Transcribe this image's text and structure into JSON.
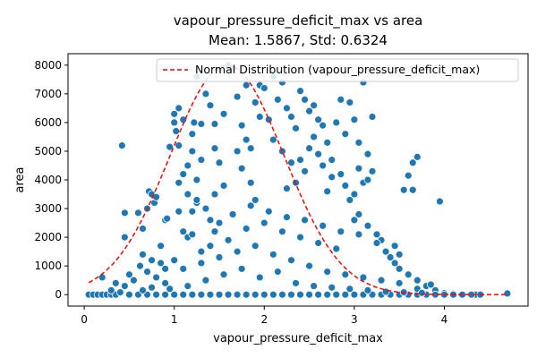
{
  "chart_data": {
    "type": "scatter",
    "title": "vapour_pressure_deficit_max vs area",
    "subtitle": "Mean: 1.5867, Std: 0.6324",
    "xlabel": "vapour_pressure_deficit_max",
    "ylabel": "area",
    "xlim": [
      -0.18,
      4.93
    ],
    "ylim": [
      -400,
      8400
    ],
    "xticks": [
      0,
      1,
      2,
      3,
      4
    ],
    "yticks": [
      0,
      1000,
      2000,
      3000,
      4000,
      5000,
      6000,
      7000,
      8000
    ],
    "grid": false,
    "legend_position": "top-right",
    "point_color": "#1f77b4",
    "curve_color": "#ff0000",
    "normal_curve": {
      "name": "Normal Distribution (vapour_pressure_deficit_max)",
      "mean": 1.5867,
      "std": 0.6324,
      "x_range": [
        0.05,
        4.7
      ],
      "peak_value": 8000
    },
    "series": [
      {
        "name": "",
        "points": [
          [
            0.05,
            0
          ],
          [
            0.1,
            0
          ],
          [
            0.15,
            0
          ],
          [
            0.2,
            0
          ],
          [
            0.25,
            0
          ],
          [
            0.3,
            0
          ],
          [
            0.35,
            0
          ],
          [
            0.2,
            600
          ],
          [
            0.3,
            150
          ],
          [
            0.35,
            400
          ],
          [
            0.4,
            80
          ],
          [
            0.45,
            300
          ],
          [
            0.42,
            5200
          ],
          [
            0.45,
            2850
          ],
          [
            0.45,
            2000
          ],
          [
            0.5,
            700
          ],
          [
            0.55,
            500
          ],
          [
            0.6,
            2850
          ],
          [
            0.62,
            1000
          ],
          [
            0.65,
            2300
          ],
          [
            0.65,
            1400
          ],
          [
            0.7,
            3000
          ],
          [
            0.72,
            3600
          ],
          [
            0.75,
            3500
          ],
          [
            0.78,
            3200
          ],
          [
            0.8,
            3400
          ],
          [
            0.7,
            800
          ],
          [
            0.75,
            1200
          ],
          [
            0.8,
            600
          ],
          [
            0.85,
            1100
          ],
          [
            0.9,
            2600
          ],
          [
            0.92,
            2650
          ],
          [
            0.95,
            5150
          ],
          [
            0.85,
            1700
          ],
          [
            0.9,
            900
          ],
          [
            1.0,
            6300
          ],
          [
            1.02,
            5700
          ],
          [
            1.05,
            5200
          ],
          [
            1.0,
            6000
          ],
          [
            1.05,
            6500
          ],
          [
            1.1,
            6100
          ],
          [
            1.15,
            4500
          ],
          [
            1.1,
            4200
          ],
          [
            1.05,
            3900
          ],
          [
            1.15,
            3500
          ],
          [
            1.2,
            5600
          ],
          [
            1.2,
            5000
          ],
          [
            1.22,
            6000
          ],
          [
            1.25,
            4000
          ],
          [
            1.1,
            2200
          ],
          [
            1.15,
            2000
          ],
          [
            1.2,
            2900
          ],
          [
            1.25,
            3200
          ],
          [
            1.3,
            1500
          ],
          [
            1.25,
            7600
          ],
          [
            1.3,
            5950
          ],
          [
            1.3,
            4700
          ],
          [
            1.35,
            7000
          ],
          [
            1.4,
            6600
          ],
          [
            1.45,
            5950
          ],
          [
            1.5,
            7850
          ],
          [
            1.55,
            6300
          ],
          [
            1.45,
            5100
          ],
          [
            1.5,
            4600
          ],
          [
            1.55,
            3800
          ],
          [
            1.5,
            2500
          ],
          [
            1.4,
            1700
          ],
          [
            1.45,
            2200
          ],
          [
            1.35,
            3000
          ],
          [
            1.6,
            8000
          ],
          [
            1.65,
            7900
          ],
          [
            1.7,
            6900
          ],
          [
            1.75,
            5900
          ],
          [
            1.8,
            5400
          ],
          [
            1.85,
            5100
          ],
          [
            1.9,
            6700
          ],
          [
            1.95,
            7300
          ],
          [
            2.0,
            7200
          ],
          [
            1.95,
            6200
          ],
          [
            1.8,
            7300
          ],
          [
            1.7,
            5000
          ],
          [
            1.75,
            4400
          ],
          [
            1.85,
            3900
          ],
          [
            1.9,
            3300
          ],
          [
            2.05,
            6100
          ],
          [
            2.1,
            7600
          ],
          [
            2.15,
            6800
          ],
          [
            2.2,
            7400
          ],
          [
            2.25,
            6500
          ],
          [
            2.3,
            6200
          ],
          [
            2.35,
            5800
          ],
          [
            2.1,
            5400
          ],
          [
            2.2,
            5000
          ],
          [
            2.3,
            4600
          ],
          [
            2.4,
            4700
          ],
          [
            2.45,
            4300
          ],
          [
            2.5,
            5100
          ],
          [
            2.35,
            3900
          ],
          [
            2.25,
            3700
          ],
          [
            2.4,
            7100
          ],
          [
            2.45,
            6800
          ],
          [
            2.5,
            6400
          ],
          [
            2.55,
            6600
          ],
          [
            2.6,
            6100
          ],
          [
            2.65,
            5900
          ],
          [
            2.55,
            5500
          ],
          [
            2.7,
            5300
          ],
          [
            2.75,
            4700
          ],
          [
            2.8,
            6000
          ],
          [
            2.85,
            6800
          ],
          [
            2.9,
            5600
          ],
          [
            2.95,
            6700
          ],
          [
            3.0,
            6100
          ],
          [
            3.05,
            5300
          ],
          [
            2.6,
            4900
          ],
          [
            2.65,
            4500
          ],
          [
            2.7,
            3600
          ],
          [
            2.75,
            4100
          ],
          [
            2.85,
            4200
          ],
          [
            2.9,
            3800
          ],
          [
            2.95,
            3300
          ],
          [
            3.0,
            3500
          ],
          [
            3.05,
            4400
          ],
          [
            3.1,
            3900
          ],
          [
            3.15,
            4000
          ],
          [
            3.2,
            6200
          ],
          [
            3.15,
            4900
          ],
          [
            3.2,
            4300
          ],
          [
            3.1,
            7400
          ],
          [
            3.05,
            2800
          ],
          [
            3.0,
            2600
          ],
          [
            3.15,
            2400
          ],
          [
            3.25,
            2100
          ],
          [
            3.3,
            1900
          ],
          [
            3.35,
            1500
          ],
          [
            3.4,
            1300
          ],
          [
            3.45,
            1100
          ],
          [
            3.5,
            900
          ],
          [
            3.55,
            3650
          ],
          [
            3.6,
            4150
          ],
          [
            3.65,
            4600
          ],
          [
            3.7,
            4800
          ],
          [
            3.65,
            3650
          ],
          [
            3.5,
            1400
          ],
          [
            3.6,
            700
          ],
          [
            3.7,
            500
          ],
          [
            3.8,
            300
          ],
          [
            3.9,
            150
          ],
          [
            3.85,
            350
          ],
          [
            3.95,
            3250
          ],
          [
            4.0,
            50
          ],
          [
            4.1,
            30
          ],
          [
            4.2,
            20
          ],
          [
            4.3,
            10
          ],
          [
            4.35,
            0
          ],
          [
            4.4,
            0
          ],
          [
            4.7,
            40
          ],
          [
            0.5,
            0
          ],
          [
            0.6,
            0
          ],
          [
            0.7,
            0
          ],
          [
            0.8,
            0
          ],
          [
            0.9,
            0
          ],
          [
            1.0,
            0
          ],
          [
            1.1,
            0
          ],
          [
            1.2,
            0
          ],
          [
            1.3,
            0
          ],
          [
            1.4,
            0
          ],
          [
            1.5,
            0
          ],
          [
            1.6,
            0
          ],
          [
            1.7,
            0
          ],
          [
            1.8,
            0
          ],
          [
            1.9,
            0
          ],
          [
            2.0,
            0
          ],
          [
            2.1,
            0
          ],
          [
            2.2,
            0
          ],
          [
            2.3,
            0
          ],
          [
            2.4,
            0
          ],
          [
            2.5,
            0
          ],
          [
            2.6,
            0
          ],
          [
            2.7,
            0
          ],
          [
            2.8,
            0
          ],
          [
            2.9,
            0
          ],
          [
            3.0,
            0
          ],
          [
            3.1,
            0
          ],
          [
            3.2,
            0
          ],
          [
            3.3,
            0
          ],
          [
            3.4,
            0
          ],
          [
            3.5,
            0
          ],
          [
            3.6,
            0
          ],
          [
            3.7,
            0
          ],
          [
            3.8,
            0
          ],
          [
            3.9,
            0
          ],
          [
            4.0,
            0
          ],
          [
            4.1,
            0
          ],
          [
            4.2,
            0
          ],
          [
            4.3,
            0
          ],
          [
            1.0,
            1200
          ],
          [
            1.2,
            2100
          ],
          [
            1.4,
            2600
          ],
          [
            1.6,
            1900
          ],
          [
            1.8,
            2300
          ],
          [
            2.0,
            2500
          ],
          [
            2.2,
            2200
          ],
          [
            2.4,
            2000
          ],
          [
            2.6,
            1800
          ],
          [
            2.8,
            1600
          ],
          [
            1.1,
            900
          ],
          [
            1.3,
            1100
          ],
          [
            1.5,
            1300
          ],
          [
            1.7,
            1500
          ],
          [
            1.9,
            1700
          ],
          [
            2.1,
            1400
          ],
          [
            2.3,
            1200
          ],
          [
            2.5,
            1000
          ],
          [
            2.7,
            800
          ],
          [
            2.9,
            700
          ],
          [
            3.1,
            600
          ],
          [
            3.3,
            500
          ],
          [
            3.5,
            400
          ],
          [
            3.7,
            200
          ],
          [
            0.9,
            400
          ],
          [
            1.05,
            2900
          ],
          [
            1.25,
            3300
          ],
          [
            1.45,
            3500
          ],
          [
            1.65,
            2800
          ],
          [
            1.85,
            3100
          ],
          [
            2.05,
            2900
          ],
          [
            2.25,
            2700
          ],
          [
            2.45,
            2600
          ],
          [
            2.65,
            2400
          ],
          [
            2.85,
            2200
          ],
          [
            3.05,
            2100
          ],
          [
            3.25,
            1800
          ],
          [
            3.45,
            1700
          ],
          [
            0.95,
            200
          ],
          [
            1.15,
            300
          ],
          [
            1.35,
            500
          ],
          [
            1.55,
            700
          ],
          [
            1.75,
            900
          ],
          [
            1.95,
            600
          ],
          [
            2.15,
            800
          ],
          [
            2.35,
            400
          ],
          [
            2.55,
            300
          ],
          [
            2.75,
            250
          ],
          [
            2.95,
            200
          ],
          [
            3.15,
            150
          ],
          [
            3.35,
            100
          ],
          [
            3.55,
            80
          ],
          [
            3.75,
            60
          ],
          [
            0.65,
            150
          ],
          [
            0.75,
            250
          ]
        ]
      }
    ]
  }
}
